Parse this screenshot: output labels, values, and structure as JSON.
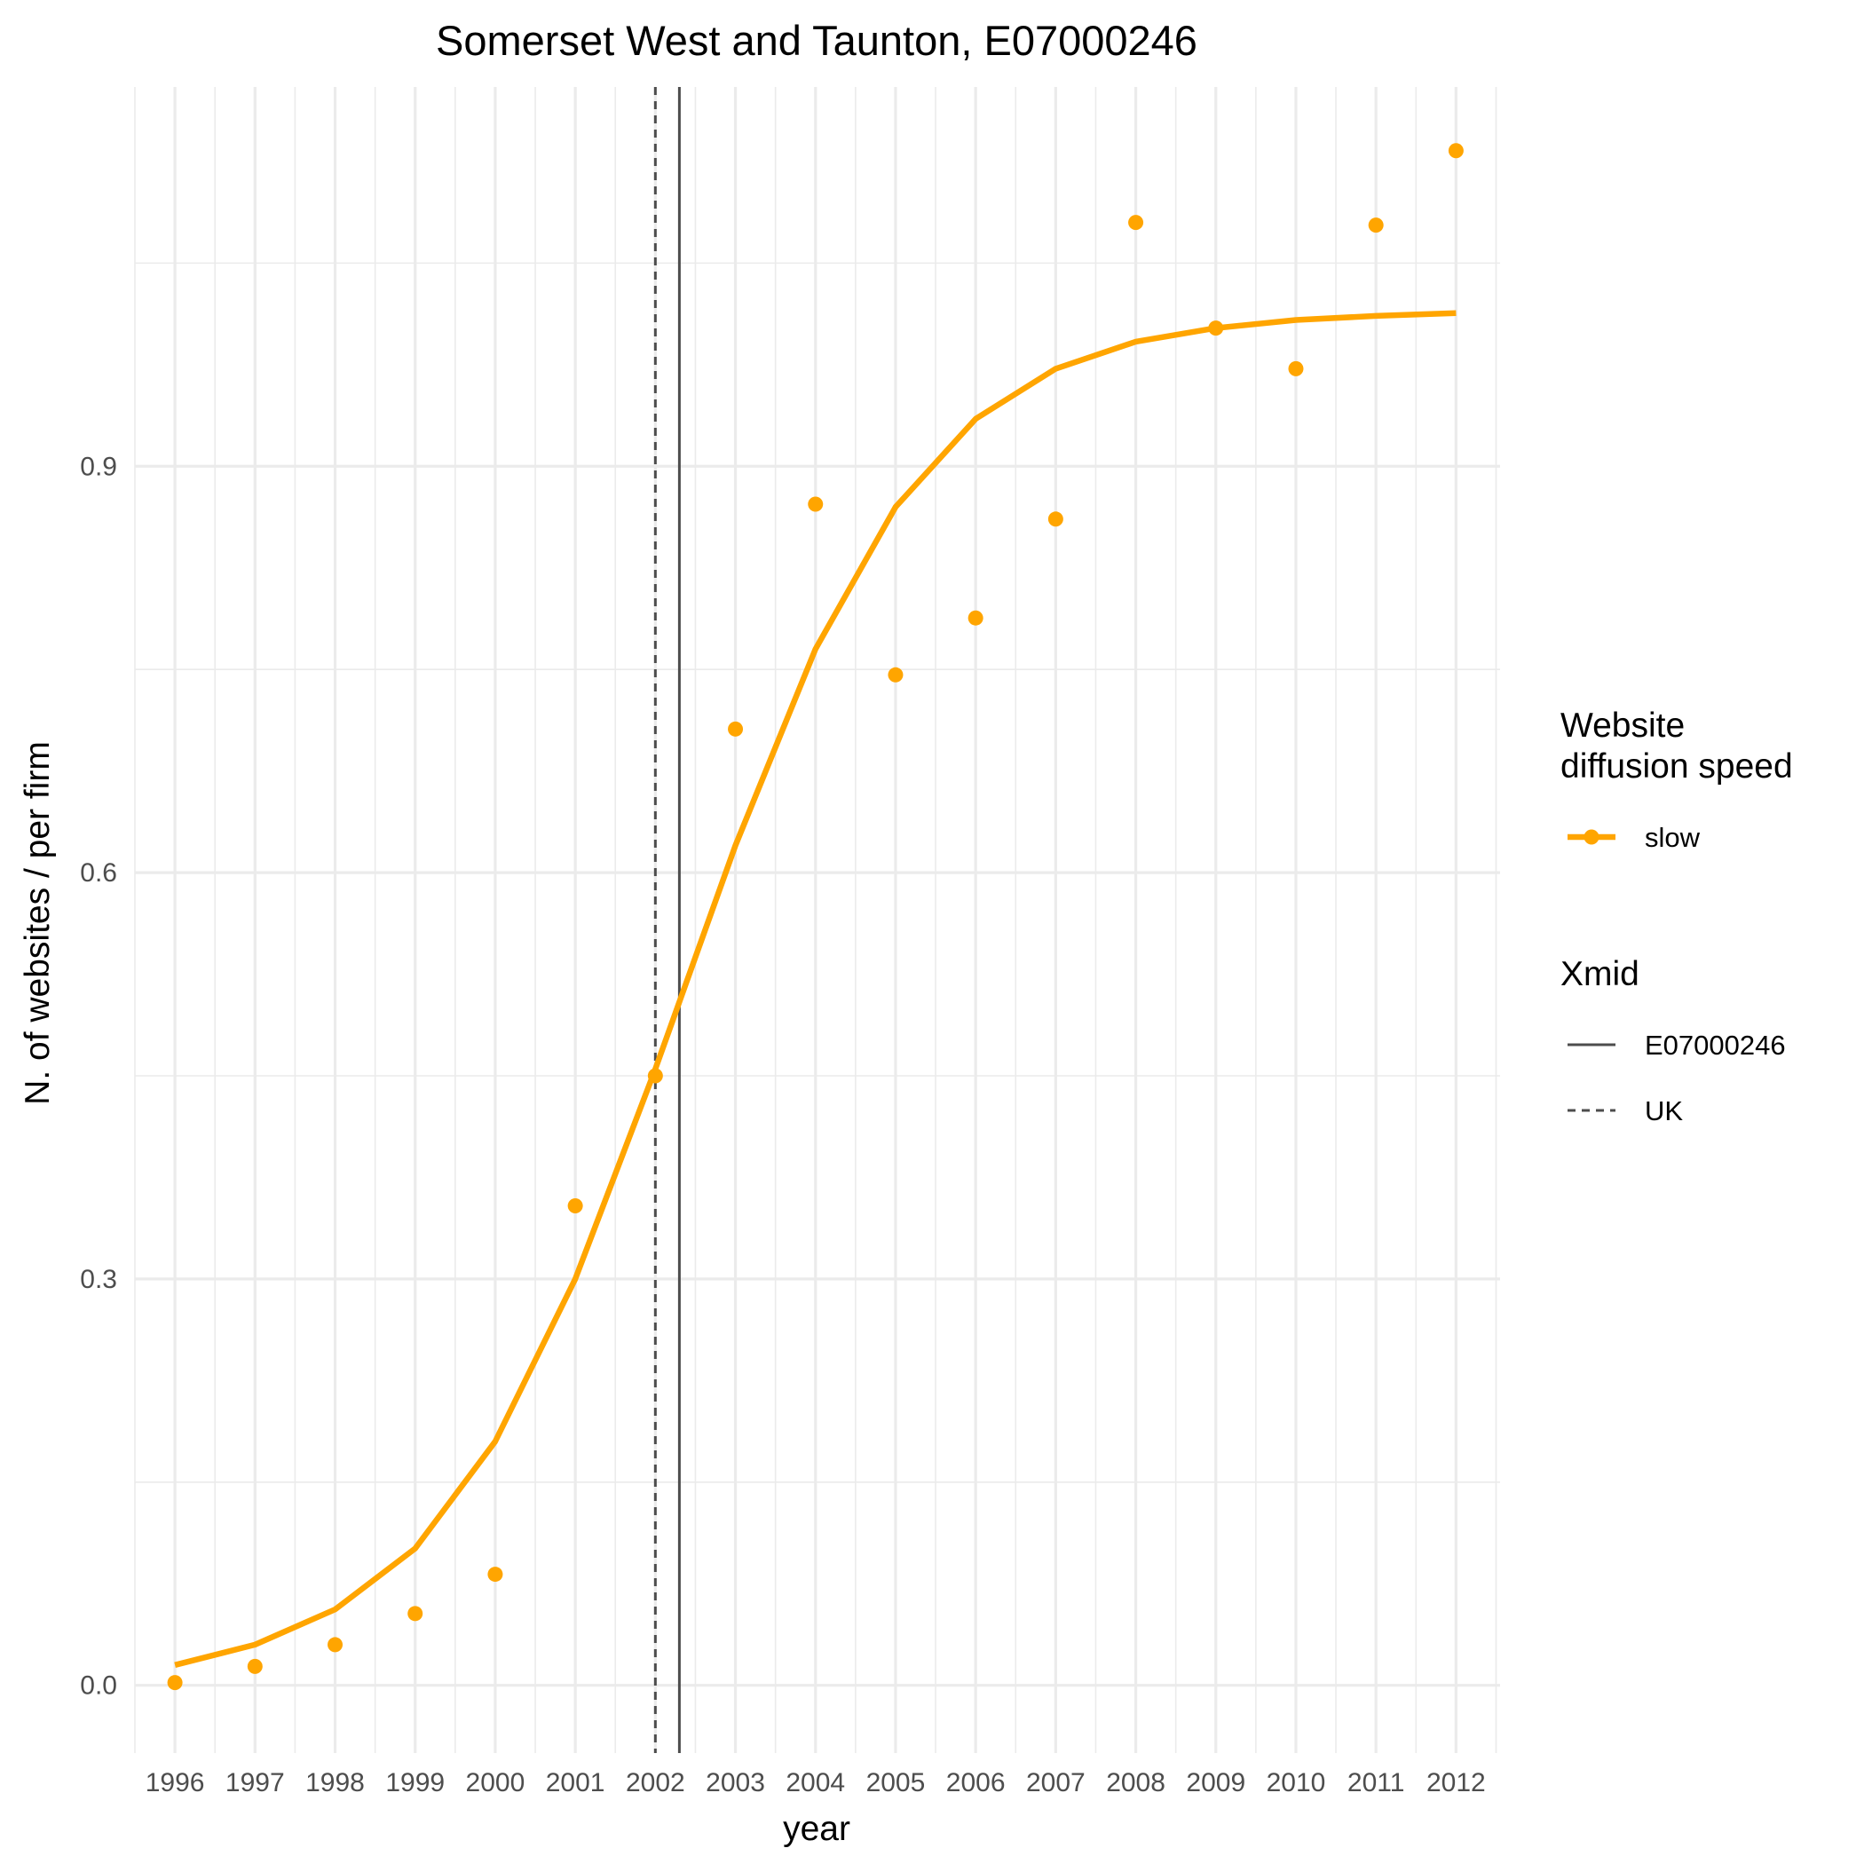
{
  "chart_data": {
    "type": "line",
    "title": "Somerset West and Taunton, E07000246",
    "xlabel": "year",
    "ylabel": "N. of websites / per firm",
    "x": [
      1996,
      1997,
      1998,
      1999,
      2000,
      2001,
      2002,
      2003,
      2004,
      2005,
      2006,
      2007,
      2008,
      2009,
      2010,
      2011,
      2012
    ],
    "x_tick_labels": [
      "1996",
      "1997",
      "1998",
      "1999",
      "2000",
      "2001",
      "2002",
      "2003",
      "2004",
      "2005",
      "2006",
      "2007",
      "2008",
      "2009",
      "2010",
      "2011",
      "2012"
    ],
    "y_ticks": [
      0.0,
      0.3,
      0.6,
      0.9
    ],
    "y_tick_labels": [
      "0.0",
      "0.3",
      "0.6",
      "0.9"
    ],
    "xlim": [
      1995.5,
      2012.55
    ],
    "ylim": [
      -0.05,
      1.18
    ],
    "grid": true,
    "series": [
      {
        "name": "slow",
        "kind": "fitted-line",
        "color": "#FFA500",
        "values": [
          0.015,
          0.03,
          0.056,
          0.101,
          0.18,
          0.3,
          0.455,
          0.62,
          0.765,
          0.87,
          0.935,
          0.972,
          0.992,
          1.002,
          1.008,
          1.011,
          1.013
        ]
      },
      {
        "name": "slow",
        "kind": "points",
        "color": "#FFA500",
        "values": [
          0.002,
          0.014,
          0.03,
          0.053,
          0.082,
          0.354,
          0.45,
          0.706,
          0.872,
          0.746,
          0.788,
          0.861,
          1.08,
          1.002,
          0.972,
          1.078,
          1.133
        ]
      }
    ],
    "vlines": [
      {
        "name": "E07000246",
        "x": 2002.3,
        "style": "solid",
        "color": "#4d4d4d"
      },
      {
        "name": "UK",
        "x": 2002.0,
        "style": "dashed",
        "color": "#4d4d4d"
      }
    ],
    "legend": {
      "placement": "right",
      "groups": [
        {
          "title_lines": [
            "Website",
            "diffusion speed"
          ],
          "entries": [
            {
              "label": "slow",
              "style": "line-point",
              "color": "#FFA500"
            }
          ]
        },
        {
          "title_lines": [
            "Xmid"
          ],
          "entries": [
            {
              "label": "E07000246",
              "style": "solid",
              "color": "#4d4d4d"
            },
            {
              "label": "UK",
              "style": "dashed",
              "color": "#4d4d4d"
            }
          ]
        }
      ]
    }
  }
}
